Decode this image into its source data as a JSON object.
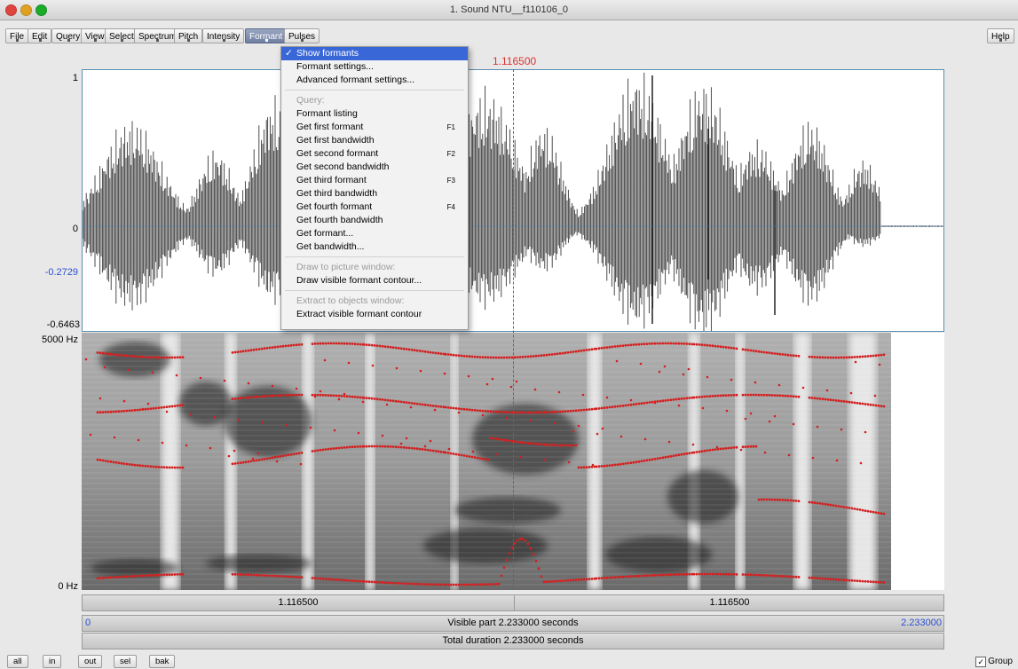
{
  "window": {
    "title": "1. Sound NTU__f110106_0"
  },
  "menubar": {
    "items": [
      "File",
      "Edit",
      "Query",
      "View",
      "Select",
      "Spectrum",
      "Pitch",
      "Intensity",
      "Formant",
      "Pulses"
    ],
    "active": "Formant",
    "help": "Help"
  },
  "cursor": {
    "time_label": "1.116500"
  },
  "waveform": {
    "y_labels": {
      "max": "1",
      "zero": "0",
      "cursor_value": "-0.2729",
      "min": "-0.6463"
    }
  },
  "spectrogram": {
    "y_labels": {
      "top": "5000 Hz",
      "bottom": "0 Hz"
    }
  },
  "time_bars": {
    "left_segment": "1.116500",
    "right_segment": "1.116500",
    "visible_start": "0",
    "visible_label": "Visible part 2.233000 seconds",
    "visible_end": "2.233000",
    "total_label": "Total duration 2.233000 seconds"
  },
  "formant_menu": {
    "items": [
      {
        "label": "Show formants",
        "checked": true,
        "selected": true
      },
      {
        "label": "Formant settings..."
      },
      {
        "label": "Advanced formant settings..."
      },
      {
        "separator": true
      },
      {
        "label": "Query:",
        "header": true
      },
      {
        "label": "Formant listing"
      },
      {
        "label": "Get first formant",
        "shortcut": "F1"
      },
      {
        "label": "Get first bandwidth"
      },
      {
        "label": "Get second formant",
        "shortcut": "F2"
      },
      {
        "label": "Get second bandwidth"
      },
      {
        "label": "Get third formant",
        "shortcut": "F3"
      },
      {
        "label": "Get third bandwidth"
      },
      {
        "label": "Get fourth formant",
        "shortcut": "F4"
      },
      {
        "label": "Get fourth bandwidth"
      },
      {
        "label": "Get formant..."
      },
      {
        "label": "Get bandwidth..."
      },
      {
        "separator": true
      },
      {
        "label": "Draw to picture window:",
        "header": true
      },
      {
        "label": "Draw visible formant contour..."
      },
      {
        "separator": true
      },
      {
        "label": "Extract to objects window:",
        "header": true
      },
      {
        "label": "Extract visible formant contour"
      }
    ]
  },
  "bottom_buttons": [
    "all",
    "in",
    "out",
    "sel",
    "bak"
  ],
  "group": {
    "label": "Group",
    "checked": true
  },
  "colors": {
    "cursor": "#e03030",
    "formant_dots": "#d42020",
    "menu_highlight": "#3a67d8",
    "wave_border": "#5b8fb3"
  }
}
